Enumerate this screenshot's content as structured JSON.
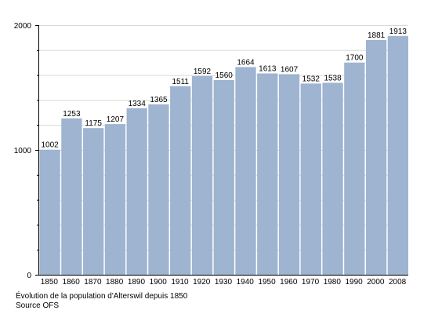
{
  "chart_data": {
    "type": "bar",
    "categories": [
      "1850",
      "1860",
      "1870",
      "1880",
      "1890",
      "1900",
      "1910",
      "1920",
      "1930",
      "1940",
      "1950",
      "1960",
      "1970",
      "1980",
      "1990",
      "2000",
      "2008"
    ],
    "values": [
      1002,
      1253,
      1175,
      1207,
      1334,
      1365,
      1511,
      1592,
      1560,
      1664,
      1613,
      1607,
      1532,
      1538,
      1700,
      1881,
      1913
    ],
    "title": "",
    "xlabel": "",
    "ylabel": "",
    "ylim": [
      0,
      2000
    ],
    "yticks": [
      0,
      1000,
      2000
    ],
    "grid": true,
    "bar_color": "#9eb4d1",
    "data_labels": true
  },
  "caption": {
    "line1": "Évolution de la population d'Alterswil depuis 1850",
    "line2": "Source OFS"
  }
}
